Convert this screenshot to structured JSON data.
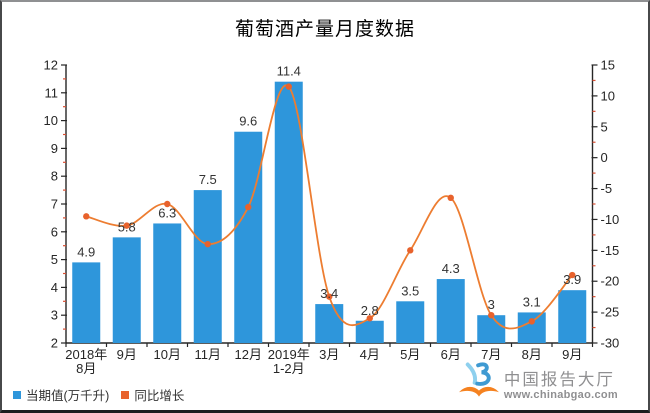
{
  "title": "葡萄酒产量月度数据",
  "chart_data": {
    "type": "bar",
    "title": "葡萄酒产量月度数据",
    "categories": [
      "2018年\n8月",
      "9月",
      "10月",
      "11月",
      "12月",
      "2019年\n1-2月",
      "3月",
      "4月",
      "5月",
      "6月",
      "7月",
      "8月",
      "9月"
    ],
    "series": [
      {
        "name": "当期值(万千升)",
        "type": "bar",
        "axis": "left",
        "values": [
          4.9,
          5.8,
          6.3,
          7.5,
          9.6,
          11.4,
          3.4,
          2.8,
          3.5,
          4.3,
          3,
          3.1,
          3.9
        ],
        "labels": [
          "4.9",
          "5.8",
          "6.3",
          "7.5",
          "9.6",
          "11.4",
          "3.4",
          "2.8",
          "3.5",
          "4.3",
          "3",
          "3.1",
          "3.9"
        ],
        "color": "#2e96db"
      },
      {
        "name": "同比增长",
        "type": "line",
        "axis": "right",
        "values": [
          -9.5,
          -11,
          -7.5,
          -14,
          -8,
          11.5,
          -22.5,
          -26,
          -15,
          -6.5,
          -25.5,
          -26.5,
          -19
        ],
        "color": "#ed7d31",
        "marker_color": "#e8622c"
      }
    ],
    "left_axis": {
      "min": 2,
      "max": 12,
      "step": 1,
      "minor_step": 0.5,
      "ticks": [
        "2",
        "3",
        "4",
        "5",
        "6",
        "7",
        "8",
        "9",
        "10",
        "11",
        "12"
      ]
    },
    "right_axis": {
      "min": -30,
      "max": 15,
      "step": 5,
      "minor_step": 2.5,
      "ticks": [
        "-30",
        "-25",
        "-20",
        "-15",
        "-10",
        "-5",
        "0",
        "5",
        "10",
        "15"
      ]
    },
    "grid": false,
    "legend_position": "bottom-left",
    "colors": {
      "axis_line": "#262626",
      "minor_tick": "#d94f33",
      "text": "#262626"
    }
  },
  "legend": {
    "items": [
      {
        "label": "当期值(万千升)",
        "color": "#2e96db"
      },
      {
        "label": "同比增长",
        "color": "#e8622c"
      }
    ]
  },
  "logo": {
    "name": "中国报告大厅",
    "url": "www.chinabgao.com",
    "text_color": "#8f8f91",
    "icon_light_blue": "#8ed0ee",
    "icon_blue": "#3f9ad2",
    "icon_orange": "#f58220"
  }
}
